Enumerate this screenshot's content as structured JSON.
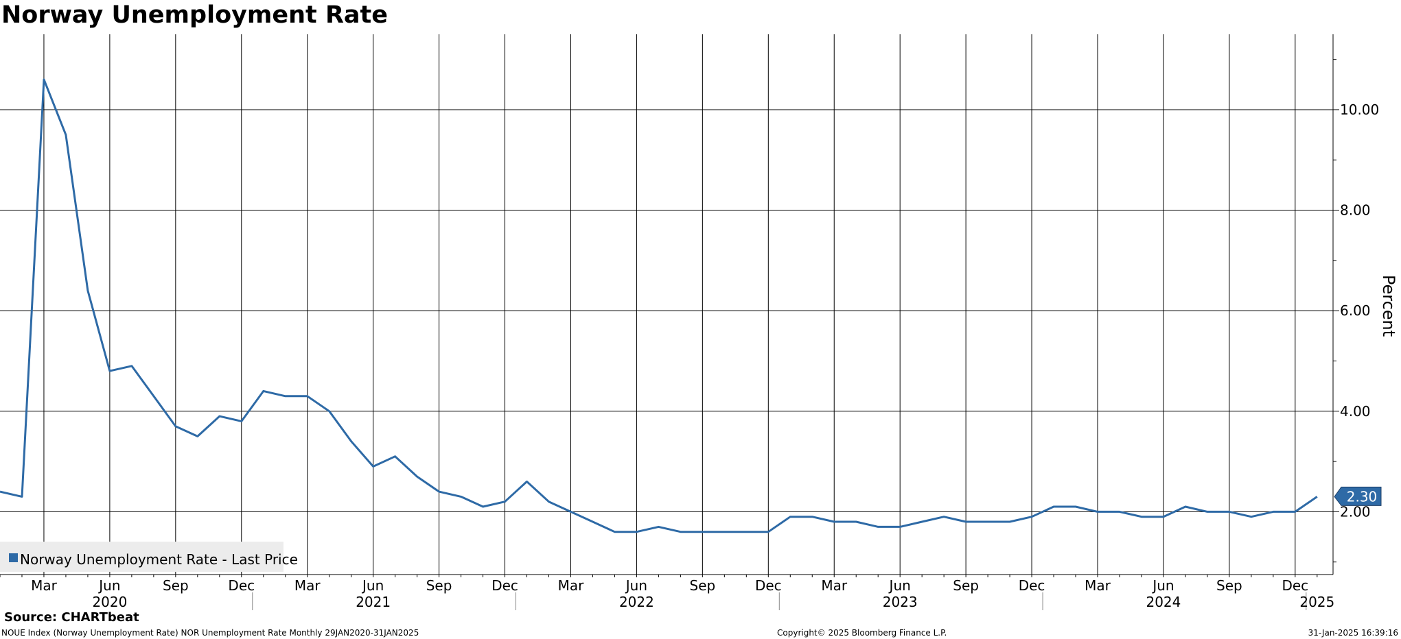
{
  "chart_data": {
    "type": "line",
    "title": "Norway Unemployment Rate",
    "ylabel": "Percent",
    "ylim": [
      0.75,
      11.5
    ],
    "yticks": [
      2,
      4,
      6,
      8,
      10
    ],
    "ytick_labels": [
      "2.00",
      "4.00",
      "6.00",
      "8.00",
      "10.00"
    ],
    "grid": true,
    "legend_position": "bottom-left",
    "month_ticks": [
      {
        "label": "Mar",
        "date": "2020-03"
      },
      {
        "label": "Jun",
        "date": "2020-06"
      },
      {
        "label": "Sep",
        "date": "2020-09"
      },
      {
        "label": "Dec",
        "date": "2020-12"
      },
      {
        "label": "Mar",
        "date": "2021-03"
      },
      {
        "label": "Jun",
        "date": "2021-06"
      },
      {
        "label": "Sep",
        "date": "2021-09"
      },
      {
        "label": "Dec",
        "date": "2021-12"
      },
      {
        "label": "Mar",
        "date": "2022-03"
      },
      {
        "label": "Jun",
        "date": "2022-06"
      },
      {
        "label": "Sep",
        "date": "2022-09"
      },
      {
        "label": "Dec",
        "date": "2022-12"
      },
      {
        "label": "Mar",
        "date": "2023-03"
      },
      {
        "label": "Jun",
        "date": "2023-06"
      },
      {
        "label": "Sep",
        "date": "2023-09"
      },
      {
        "label": "Dec",
        "date": "2023-12"
      },
      {
        "label": "Mar",
        "date": "2024-03"
      },
      {
        "label": "Jun",
        "date": "2024-06"
      },
      {
        "label": "Sep",
        "date": "2024-09"
      },
      {
        "label": "Dec",
        "date": "2024-12"
      }
    ],
    "year_labels": [
      {
        "label": "2020",
        "date": "2020-06"
      },
      {
        "label": "2021",
        "date": "2021-06"
      },
      {
        "label": "2022",
        "date": "2022-06"
      },
      {
        "label": "2023",
        "date": "2023-06"
      },
      {
        "label": "2024",
        "date": "2024-06"
      },
      {
        "label": "2025",
        "date": "2025-01"
      }
    ],
    "series": [
      {
        "name": "Norway Unemployment Rate - Last Price",
        "color": "#2e6aa6",
        "last_value_label": "2.30",
        "x": [
          "2020-01",
          "2020-02",
          "2020-03",
          "2020-04",
          "2020-05",
          "2020-06",
          "2020-07",
          "2020-08",
          "2020-09",
          "2020-10",
          "2020-11",
          "2020-12",
          "2021-01",
          "2021-02",
          "2021-03",
          "2021-04",
          "2021-05",
          "2021-06",
          "2021-07",
          "2021-08",
          "2021-09",
          "2021-10",
          "2021-11",
          "2021-12",
          "2022-01",
          "2022-02",
          "2022-03",
          "2022-04",
          "2022-05",
          "2022-06",
          "2022-07",
          "2022-08",
          "2022-09",
          "2022-10",
          "2022-11",
          "2022-12",
          "2023-01",
          "2023-02",
          "2023-03",
          "2023-04",
          "2023-05",
          "2023-06",
          "2023-07",
          "2023-08",
          "2023-09",
          "2023-10",
          "2023-11",
          "2023-12",
          "2024-01",
          "2024-02",
          "2024-03",
          "2024-04",
          "2024-05",
          "2024-06",
          "2024-07",
          "2024-08",
          "2024-09",
          "2024-10",
          "2024-11",
          "2024-12",
          "2025-01"
        ],
        "values": [
          2.4,
          2.3,
          10.6,
          9.5,
          6.4,
          4.8,
          4.9,
          4.3,
          3.7,
          3.5,
          3.9,
          3.8,
          4.4,
          4.3,
          4.3,
          4.0,
          3.4,
          2.9,
          3.1,
          2.7,
          2.4,
          2.3,
          2.1,
          2.2,
          2.6,
          2.2,
          2.0,
          1.8,
          1.6,
          1.6,
          1.7,
          1.6,
          1.6,
          1.6,
          1.6,
          1.6,
          1.9,
          1.9,
          1.8,
          1.8,
          1.7,
          1.7,
          1.8,
          1.9,
          1.8,
          1.8,
          1.8,
          1.9,
          2.1,
          2.1,
          2.0,
          2.0,
          1.9,
          1.9,
          2.1,
          2.0,
          2.0,
          1.9,
          2.0,
          2.0,
          2.3
        ]
      }
    ]
  },
  "footer": {
    "source": "Source: CHARTbeat",
    "ticker_info": "NOUE Index (Norway Unemployment Rate) NOR Unemployment Rate  Monthly 29JAN2020-31JAN2025",
    "copyright": "Copyright© 2025 Bloomberg Finance L.P.",
    "timestamp": "31-Jan-2025 16:39:16"
  }
}
